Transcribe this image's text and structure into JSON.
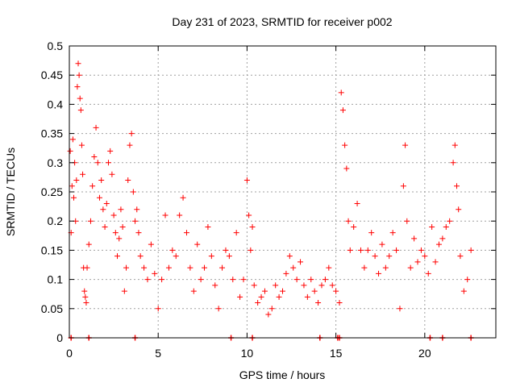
{
  "chart_data": {
    "type": "scatter",
    "title": "Day 231 of 2023, SRMTID for receiver p002",
    "xlabel": "GPS time / hours",
    "ylabel": "SRMTID / TECUs",
    "xlim": [
      0,
      24
    ],
    "ylim": [
      0,
      0.5
    ],
    "x_ticks": [
      0,
      5,
      10,
      15,
      20
    ],
    "y_ticks": [
      0,
      0.05,
      0.1,
      0.15,
      0.2,
      0.25,
      0.3,
      0.35,
      0.4,
      0.45,
      0.5
    ],
    "x_tick_labels": [
      "0",
      "5",
      "10",
      "15",
      "20"
    ],
    "y_tick_labels": [
      "0",
      "0.05",
      "0.1",
      "0.15",
      "0.2",
      "0.25",
      "0.3",
      "0.35",
      "0.4",
      "0.45",
      "0.5"
    ],
    "grid": true,
    "marker": "+",
    "color": "#ff0000",
    "series": [
      {
        "name": "SRMTID",
        "points": [
          [
            0.05,
            0.32
          ],
          [
            0.1,
            0.18
          ],
          [
            0.15,
            0.26
          ],
          [
            0.2,
            0.34
          ],
          [
            0.25,
            0.24
          ],
          [
            0.3,
            0.3
          ],
          [
            0.35,
            0.2
          ],
          [
            0.4,
            0.27
          ],
          [
            0.45,
            0.43
          ],
          [
            0.5,
            0.47
          ],
          [
            0.55,
            0.45
          ],
          [
            0.6,
            0.41
          ],
          [
            0.65,
            0.39
          ],
          [
            0.7,
            0.33
          ],
          [
            0.75,
            0.28
          ],
          [
            0.8,
            0.12
          ],
          [
            0.85,
            0.08
          ],
          [
            0.9,
            0.07
          ],
          [
            0.95,
            0.06
          ],
          [
            1.0,
            0.12
          ],
          [
            1.1,
            0.16
          ],
          [
            1.2,
            0.2
          ],
          [
            1.3,
            0.26
          ],
          [
            1.4,
            0.31
          ],
          [
            1.5,
            0.36
          ],
          [
            1.6,
            0.3
          ],
          [
            1.7,
            0.24
          ],
          [
            1.8,
            0.27
          ],
          [
            1.9,
            0.22
          ],
          [
            2.0,
            0.19
          ],
          [
            2.1,
            0.23
          ],
          [
            2.2,
            0.3
          ],
          [
            2.3,
            0.32
          ],
          [
            2.4,
            0.28
          ],
          [
            2.5,
            0.21
          ],
          [
            2.6,
            0.18
          ],
          [
            2.7,
            0.14
          ],
          [
            2.8,
            0.17
          ],
          [
            2.9,
            0.22
          ],
          [
            3.0,
            0.19
          ],
          [
            3.1,
            0.08
          ],
          [
            3.2,
            0.12
          ],
          [
            3.3,
            0.27
          ],
          [
            3.4,
            0.33
          ],
          [
            3.5,
            0.35
          ],
          [
            3.6,
            0.25
          ],
          [
            3.7,
            0.2
          ],
          [
            3.8,
            0.22
          ],
          [
            3.9,
            0.18
          ],
          [
            4.0,
            0.14
          ],
          [
            4.2,
            0.12
          ],
          [
            4.4,
            0.1
          ],
          [
            4.6,
            0.16
          ],
          [
            4.8,
            0.11
          ],
          [
            5.0,
            0.05
          ],
          [
            5.2,
            0.1
          ],
          [
            5.4,
            0.21
          ],
          [
            5.6,
            0.12
          ],
          [
            5.8,
            0.15
          ],
          [
            6.0,
            0.14
          ],
          [
            6.2,
            0.21
          ],
          [
            6.4,
            0.24
          ],
          [
            6.6,
            0.18
          ],
          [
            6.8,
            0.12
          ],
          [
            7.0,
            0.08
          ],
          [
            7.2,
            0.16
          ],
          [
            7.4,
            0.1
          ],
          [
            7.6,
            0.12
          ],
          [
            7.8,
            0.19
          ],
          [
            8.0,
            0.14
          ],
          [
            8.2,
            0.09
          ],
          [
            8.4,
            0.05
          ],
          [
            8.6,
            0.12
          ],
          [
            8.8,
            0.15
          ],
          [
            9.0,
            0.14
          ],
          [
            9.2,
            0.1
          ],
          [
            9.4,
            0.18
          ],
          [
            9.6,
            0.07
          ],
          [
            9.8,
            0.1
          ],
          [
            10.0,
            0.27
          ],
          [
            10.1,
            0.21
          ],
          [
            10.2,
            0.15
          ],
          [
            10.3,
            0.19
          ],
          [
            10.4,
            0.09
          ],
          [
            10.6,
            0.06
          ],
          [
            10.8,
            0.07
          ],
          [
            11.0,
            0.08
          ],
          [
            11.2,
            0.04
          ],
          [
            11.4,
            0.05
          ],
          [
            11.6,
            0.09
          ],
          [
            11.8,
            0.07
          ],
          [
            12.0,
            0.08
          ],
          [
            12.2,
            0.11
          ],
          [
            12.4,
            0.14
          ],
          [
            12.6,
            0.12
          ],
          [
            12.8,
            0.1
          ],
          [
            13.0,
            0.13
          ],
          [
            13.2,
            0.09
          ],
          [
            13.4,
            0.07
          ],
          [
            13.6,
            0.1
          ],
          [
            13.8,
            0.08
          ],
          [
            14.0,
            0.06
          ],
          [
            14.2,
            0.09
          ],
          [
            14.4,
            0.1
          ],
          [
            14.6,
            0.12
          ],
          [
            14.8,
            0.09
          ],
          [
            15.0,
            0.08
          ],
          [
            15.2,
            0.06
          ],
          [
            15.3,
            0.42
          ],
          [
            15.4,
            0.39
          ],
          [
            15.5,
            0.33
          ],
          [
            15.6,
            0.29
          ],
          [
            15.7,
            0.2
          ],
          [
            15.8,
            0.15
          ],
          [
            16.0,
            0.19
          ],
          [
            16.2,
            0.23
          ],
          [
            16.4,
            0.15
          ],
          [
            16.6,
            0.12
          ],
          [
            16.8,
            0.15
          ],
          [
            17.0,
            0.18
          ],
          [
            17.2,
            0.14
          ],
          [
            17.4,
            0.11
          ],
          [
            17.6,
            0.16
          ],
          [
            17.8,
            0.12
          ],
          [
            18.0,
            0.14
          ],
          [
            18.2,
            0.18
          ],
          [
            18.4,
            0.15
          ],
          [
            18.6,
            0.05
          ],
          [
            18.8,
            0.26
          ],
          [
            18.9,
            0.33
          ],
          [
            19.0,
            0.2
          ],
          [
            19.2,
            0.12
          ],
          [
            19.4,
            0.17
          ],
          [
            19.6,
            0.13
          ],
          [
            19.8,
            0.15
          ],
          [
            20.0,
            0.14
          ],
          [
            20.2,
            0.11
          ],
          [
            20.4,
            0.19
          ],
          [
            20.6,
            0.13
          ],
          [
            20.8,
            0.16
          ],
          [
            21.0,
            0.17
          ],
          [
            21.2,
            0.19
          ],
          [
            21.4,
            0.2
          ],
          [
            21.6,
            0.3
          ],
          [
            21.7,
            0.33
          ],
          [
            21.8,
            0.26
          ],
          [
            21.9,
            0.22
          ],
          [
            22.0,
            0.14
          ],
          [
            22.2,
            0.08
          ],
          [
            22.4,
            0.1
          ],
          [
            22.6,
            0.15
          ]
        ]
      }
    ],
    "baseline_markers": [
      0.1,
      1.1,
      3.7,
      9.1,
      10.3,
      14.1,
      15.1,
      15.2,
      20.3,
      21.0,
      22.6
    ]
  }
}
